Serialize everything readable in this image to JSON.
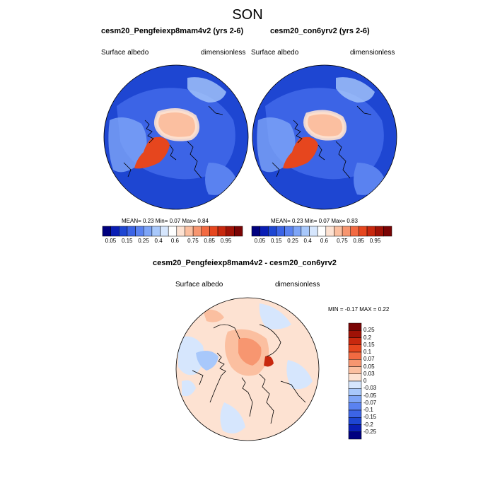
{
  "figure": {
    "title": "SON"
  },
  "panels": [
    {
      "title": "cesm20_Pengfeiexp8mam4v2 (yrs 2-6)",
      "left_label": "Surface albedo",
      "right_label": "dimensionless",
      "stats": "MEAN=  0.23  Min=  0.07  Max=  0.84"
    },
    {
      "title": "cesm20_con6yrv2 (yrs 2-6)",
      "left_label": "Surface albedo",
      "right_label": "dimensionless",
      "stats": "MEAN=  0.23  Min=  0.07  Max=  0.83"
    },
    {
      "title": "cesm20_Pengfeiexp8mam4v2 - cesm20_con6yrv2",
      "left_label": "Surface albedo",
      "right_label": "dimensionless",
      "stats": "MIN =  -0.17 MAX =   0.22"
    }
  ],
  "colorbar_main": {
    "colors": [
      "#00007f",
      "#0a1eb4",
      "#1e46d2",
      "#3c64e6",
      "#5a82f0",
      "#7ea5f7",
      "#a8c8fb",
      "#d6e6fd",
      "#ffffff",
      "#fde2d2",
      "#fbbfa0",
      "#f79670",
      "#f26a42",
      "#e6461e",
      "#c8280e",
      "#a01206",
      "#7a0404"
    ],
    "labels": [
      "0.05",
      "0.15",
      "0.25",
      "0.4",
      "0.6",
      "0.75",
      "0.85",
      "0.95"
    ]
  },
  "colorbar_diff": {
    "colors": [
      "#00007f",
      "#0a1eb4",
      "#1e46d2",
      "#3c64e6",
      "#5a82f0",
      "#7ea5f7",
      "#a8c8fb",
      "#d6e6fd",
      "#fde2d2",
      "#fbbfa0",
      "#f79670",
      "#f26a42",
      "#e6461e",
      "#c8280e",
      "#a01206",
      "#7a0404"
    ],
    "labels": [
      "-0.25",
      "-0.2",
      "-0.15",
      "-0.1",
      "-0.07",
      "-0.05",
      "-0.03",
      "0",
      "0.03",
      "0.05",
      "0.07",
      "0.1",
      "0.15",
      "0.2",
      "0.25"
    ]
  },
  "map_colors": {
    "ocean_deep": "#1e46d2",
    "ocean_mid": "#3c64e6",
    "land_light": "#7ea5f7",
    "ice": "#fbbfa0",
    "greenland": "#e6461e",
    "diff_bg": "#fde2d2",
    "diff_neg": "#d6e6fd",
    "diff_pos": "#f79670",
    "coast": "#000000"
  }
}
